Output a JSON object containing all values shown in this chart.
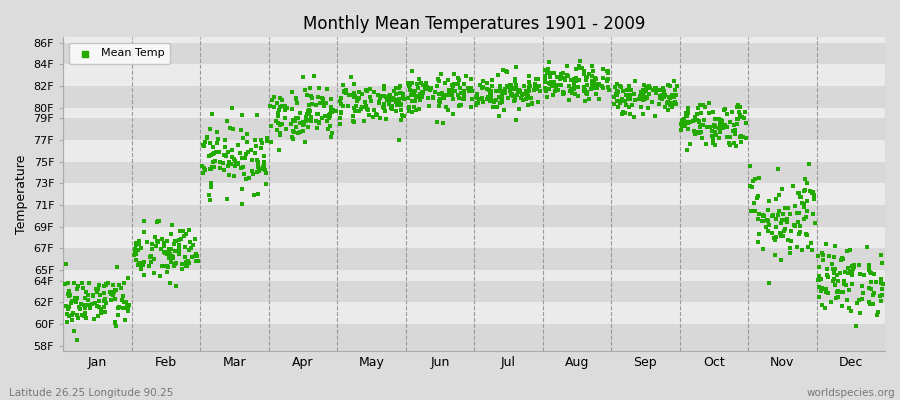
{
  "title": "Monthly Mean Temperatures 1901 - 2009",
  "ylabel": "Temperature",
  "subtitle": "Latitude 26.25 Longitude 90.25",
  "watermark": "worldspecies.org",
  "legend_label": "Mean Temp",
  "marker_color": "#22AA00",
  "background_color": "#DCDCDC",
  "plot_bg_color": "#E8E8E8",
  "stripe_color_dark": "#D8D8D8",
  "stripe_color_light": "#EBEBEB",
  "months": [
    "Jan",
    "Feb",
    "Mar",
    "Apr",
    "May",
    "Jun",
    "Jul",
    "Aug",
    "Sep",
    "Oct",
    "Nov",
    "Dec"
  ],
  "yticks": [
    58,
    60,
    62,
    64,
    65,
    67,
    69,
    71,
    73,
    75,
    77,
    79,
    80,
    82,
    84,
    86
  ],
  "ytick_labels": [
    "58F",
    "60F",
    "62F",
    "64F",
    "65F",
    "67F",
    "69F",
    "71F",
    "73F",
    "75F",
    "77F",
    "79F",
    "80F",
    "82F",
    "84F",
    "86F"
  ],
  "ylim": [
    57.5,
    86.5
  ],
  "monthly_means": [
    62.0,
    66.5,
    75.5,
    79.5,
    80.5,
    81.2,
    81.5,
    82.2,
    81.0,
    78.5,
    70.0,
    64.0
  ],
  "monthly_stds": [
    1.3,
    1.4,
    1.6,
    1.3,
    1.0,
    0.9,
    0.9,
    0.8,
    0.8,
    1.1,
    2.2,
    1.6
  ],
  "n_years": 109,
  "seed": 42
}
